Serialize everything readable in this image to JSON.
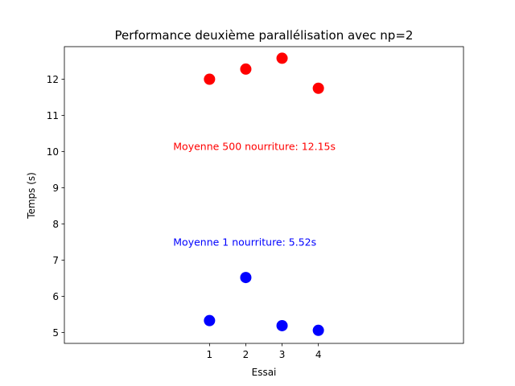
{
  "chart_data": {
    "type": "scatter",
    "title": "Performance deuxième parallélisation avec np=2",
    "xlabel": "Essai",
    "ylabel": "Temps (s)",
    "xlim": [
      -3,
      8
    ],
    "ylim": [
      4.7,
      12.9
    ],
    "xticks": [
      1,
      2,
      3,
      4
    ],
    "yticks": [
      5,
      6,
      7,
      8,
      9,
      10,
      11,
      12
    ],
    "grid": false,
    "series": [
      {
        "color": "#ff0000",
        "x": [
          1,
          2,
          3,
          4
        ],
        "y": [
          12.0,
          12.28,
          12.58,
          11.75
        ]
      },
      {
        "color": "#0000ff",
        "x": [
          1,
          2,
          3,
          4
        ],
        "y": [
          5.33,
          6.52,
          5.19,
          5.06
        ]
      }
    ],
    "annotations": [
      {
        "text": "Moyenne 500 nourriture: 12.15s",
        "x": 0.0,
        "y": 10.15,
        "color": "#ff0000"
      },
      {
        "text": "Moyenne 1 nourriture: 5.52s",
        "x": 0.0,
        "y": 7.5,
        "color": "#0000ff"
      }
    ]
  }
}
